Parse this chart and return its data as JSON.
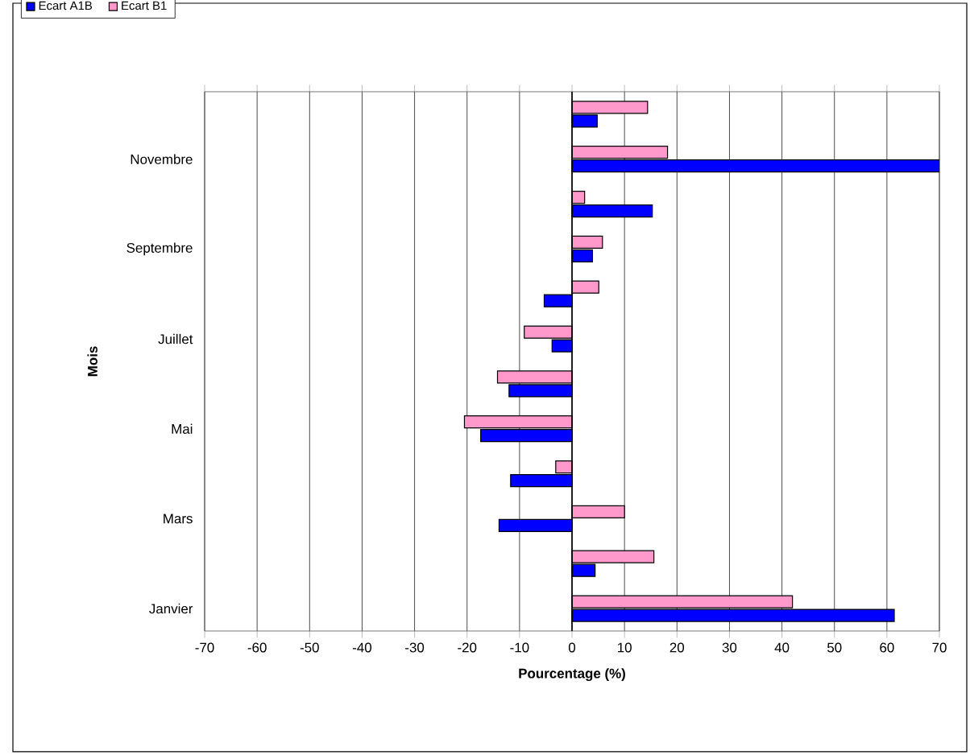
{
  "chart_data": {
    "type": "bar",
    "orientation": "horizontal",
    "xlabel": "Pourcentage (%)",
    "ylabel": "Mois",
    "categories": [
      null,
      "Novembre",
      null,
      "Septembre",
      null,
      "Juillet",
      null,
      "Mai",
      null,
      "Mars",
      null,
      "Janvier"
    ],
    "series": [
      {
        "name": "Ecart A1B",
        "color": "#0000ff",
        "values": [
          4.8,
          70,
          15.3,
          3.9,
          -5.3,
          -3.8,
          -12.0,
          -17.4,
          -11.7,
          -13.9,
          4.4,
          61.4
        ]
      },
      {
        "name": "Ecart B1",
        "color": "#ff99cc",
        "values": [
          14.4,
          18.2,
          2.4,
          5.8,
          5.1,
          -9.1,
          -14.2,
          -20.5,
          -3.1,
          10.0,
          15.6,
          42.0
        ]
      }
    ],
    "xlim": [
      -70,
      70
    ],
    "xticks": [
      -70,
      -60,
      -50,
      -40,
      -30,
      -20,
      -10,
      0,
      10,
      20,
      30,
      40,
      50,
      60,
      70
    ],
    "grid": "x",
    "legend": "top left"
  }
}
